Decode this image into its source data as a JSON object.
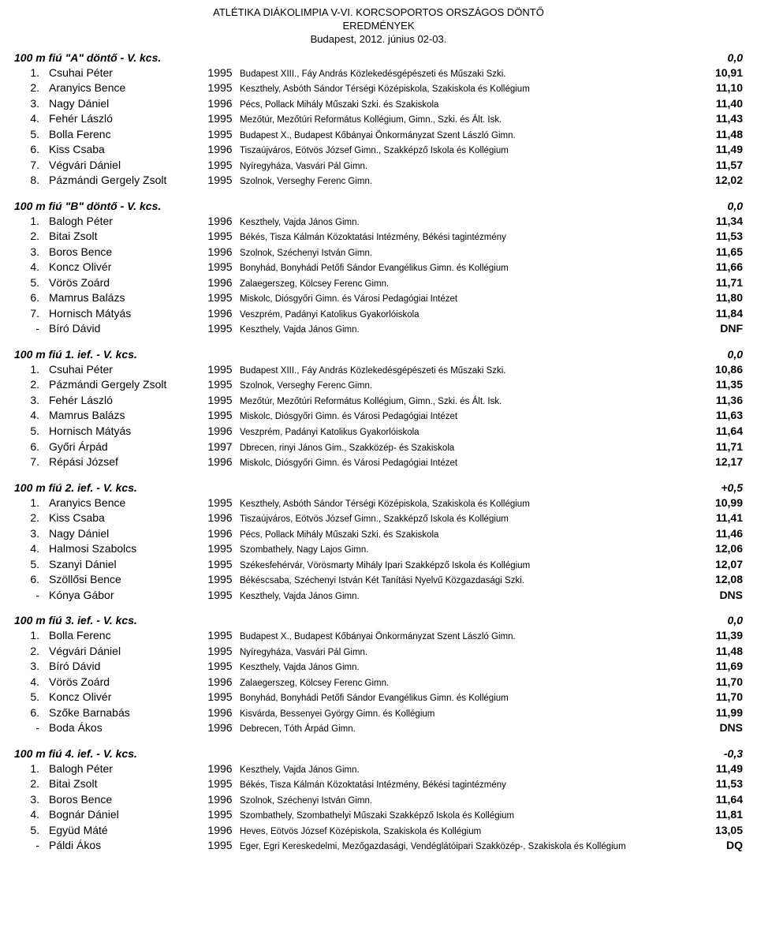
{
  "header": {
    "line1": "ATLÉTIKA DIÁKOLIMPIA V-VI. KORCSOPORTOS ORSZÁGOS DÖNTŐ",
    "line2": "EREDMÉNYEK",
    "line3": "Budapest, 2012. június 02-03."
  },
  "sections": [
    {
      "title": "100 m fiú \"A\" döntő  - V. kcs.",
      "wind": "0,0",
      "rows": [
        {
          "place": "1.",
          "name": "Csuhai Péter",
          "year": "1995",
          "school": "Budapest XIII., Fáy András Közlekedésgépészeti és Műszaki Szki.",
          "result": "10,91"
        },
        {
          "place": "2.",
          "name": "Aranyics Bence",
          "year": "1995",
          "school": "Keszthely, Asbóth Sándor Térségi Középiskola, Szakiskola és Kollégium",
          "result": "11,10"
        },
        {
          "place": "3.",
          "name": "Nagy Dániel",
          "year": "1996",
          "school": "Pécs, Pollack Mihály Műszaki Szki. és Szakiskola",
          "result": "11,40"
        },
        {
          "place": "4.",
          "name": "Fehér László",
          "year": "1995",
          "school": "Mezőtúr, Mezőtúri Református Kollégium, Gimn., Szki. és Ált. Isk.",
          "result": "11,43"
        },
        {
          "place": "5.",
          "name": "Bolla Ferenc",
          "year": "1995",
          "school": "Budapest X., Budapest Kőbányai Önkormányzat Szent László Gimn.",
          "result": "11,48"
        },
        {
          "place": "6.",
          "name": "Kiss Csaba",
          "year": "1996",
          "school": "Tiszaújváros, Eötvös József Gimn., Szakképző Iskola és Kollégium",
          "result": "11,49"
        },
        {
          "place": "7.",
          "name": "Végvári Dániel",
          "year": "1995",
          "school": "Nyíregyháza, Vasvári Pál Gimn.",
          "result": "11,57"
        },
        {
          "place": "8.",
          "name": "Pázmándi Gergely Zsolt",
          "year": "1995",
          "school": "Szolnok, Verseghy Ferenc Gimn.",
          "result": "12,02"
        }
      ]
    },
    {
      "title": "100 m fiú \"B\" döntő  - V. kcs.",
      "wind": "0,0",
      "rows": [
        {
          "place": "1.",
          "name": "Balogh Péter",
          "year": "1996",
          "school": "Keszthely, Vajda János Gimn.",
          "result": "11,34"
        },
        {
          "place": "2.",
          "name": "Bitai Zsolt",
          "year": "1995",
          "school": "Békés, Tisza Kálmán Közoktatási Intézmény, Békési tagintézmény",
          "result": "11,53"
        },
        {
          "place": "3.",
          "name": "Boros Bence",
          "year": "1996",
          "school": "Szolnok, Széchenyi István Gimn.",
          "result": "11,65"
        },
        {
          "place": "4.",
          "name": "Koncz Olivér",
          "year": "1995",
          "school": "Bonyhád, Bonyhádi Petőfi Sándor Evangélikus Gimn. és Kollégium",
          "result": "11,66"
        },
        {
          "place": "5.",
          "name": "Vörös Zoárd",
          "year": "1996",
          "school": "Zalaegerszeg, Kölcsey Ferenc Gimn.",
          "result": "11,71"
        },
        {
          "place": "6.",
          "name": "Mamrus Balázs",
          "year": "1995",
          "school": "Miskolc, Diósgyőri Gimn. és Városi Pedagógiai Intézet",
          "result": "11,80"
        },
        {
          "place": "7.",
          "name": "Hornisch Mátyás",
          "year": "1996",
          "school": "Veszprém, Padányi Katolikus Gyakorlóiskola",
          "result": "11,84"
        },
        {
          "place": "-",
          "name": "Bíró Dávid",
          "year": "1995",
          "school": "Keszthely, Vajda János Gimn.",
          "result": "DNF"
        }
      ]
    },
    {
      "title": "100 m fiú 1. ief.  - V. kcs.",
      "wind": "0,0",
      "rows": [
        {
          "place": "1.",
          "name": "Csuhai Péter",
          "year": "1995",
          "school": "Budapest XIII., Fáy András Közlekedésgépészeti és Műszaki Szki.",
          "result": "10,86"
        },
        {
          "place": "2.",
          "name": "Pázmándi Gergely Zsolt",
          "year": "1995",
          "school": "Szolnok, Verseghy Ferenc Gimn.",
          "result": "11,35"
        },
        {
          "place": "3.",
          "name": "Fehér László",
          "year": "1995",
          "school": "Mezőtúr, Mezőtúri Református Kollégium, Gimn., Szki. és Ált. Isk.",
          "result": "11,36"
        },
        {
          "place": "4.",
          "name": "Mamrus Balázs",
          "year": "1995",
          "school": "Miskolc, Diósgyőri Gimn. és Városi Pedagógiai Intézet",
          "result": "11,63"
        },
        {
          "place": "5.",
          "name": "Hornisch Mátyás",
          "year": "1996",
          "school": "Veszprém, Padányi Katolikus Gyakorlóiskola",
          "result": "11,64"
        },
        {
          "place": "6.",
          "name": "Győri Árpád",
          "year": "1997",
          "school": "Dbrecen, rinyi János Gim., Szakközép- és Szakiskola",
          "result": "11,71"
        },
        {
          "place": "7.",
          "name": "Répási József",
          "year": "1996",
          "school": "Miskolc, Diósgyőri Gimn. és Városi Pedagógiai Intézet",
          "result": "12,17"
        }
      ]
    },
    {
      "title": "100 m fiú 2. ief.  - V. kcs.",
      "wind": "+0,5",
      "rows": [
        {
          "place": "1.",
          "name": "Aranyics Bence",
          "year": "1995",
          "school": "Keszthely, Asbóth Sándor Térségi Középiskola, Szakiskola és Kollégium",
          "result": "10,99"
        },
        {
          "place": "2.",
          "name": "Kiss Csaba",
          "year": "1996",
          "school": "Tiszaújváros, Eötvös József Gimn., Szakképző Iskola és Kollégium",
          "result": "11,41"
        },
        {
          "place": "3.",
          "name": "Nagy Dániel",
          "year": "1996",
          "school": "Pécs, Pollack Mihály Műszaki Szki. és Szakiskola",
          "result": "11,46"
        },
        {
          "place": "4.",
          "name": "Halmosi Szabolcs",
          "year": "1995",
          "school": "Szombathely, Nagy Lajos Gimn.",
          "result": "12,06"
        },
        {
          "place": "5.",
          "name": "Szanyi Dániel",
          "year": "1995",
          "school": "Székesfehérvár, Vörösmarty Mihály Ipari Szakképző Iskola és Kollégium",
          "result": "12,07"
        },
        {
          "place": "6.",
          "name": "Szöllősi Bence",
          "year": "1995",
          "school": "Békéscsaba, Széchenyi István Két Tanítási Nyelvű Közgazdasági Szki.",
          "result": "12,08"
        },
        {
          "place": "-",
          "name": "Kónya Gábor",
          "year": "1995",
          "school": "Keszthely, Vajda János Gimn.",
          "result": "DNS"
        }
      ]
    },
    {
      "title": "100 m fiú 3. ief.  - V. kcs.",
      "wind": "0,0",
      "rows": [
        {
          "place": "1.",
          "name": "Bolla Ferenc",
          "year": "1995",
          "school": "Budapest X., Budapest Kőbányai Önkormányzat Szent László Gimn.",
          "result": "11,39"
        },
        {
          "place": "2.",
          "name": "Végvári Dániel",
          "year": "1995",
          "school": "Nyíregyháza, Vasvári Pál Gimn.",
          "result": "11,48"
        },
        {
          "place": "3.",
          "name": "Bíró Dávid",
          "year": "1995",
          "school": "Keszthely, Vajda János Gimn.",
          "result": "11,69"
        },
        {
          "place": "4.",
          "name": "Vörös Zoárd",
          "year": "1996",
          "school": "Zalaegerszeg, Kölcsey Ferenc Gimn.",
          "result": "11,70"
        },
        {
          "place": "5.",
          "name": "Koncz Olivér",
          "year": "1995",
          "school": "Bonyhád, Bonyhádi Petőfi Sándor Evangélikus Gimn. és Kollégium",
          "result": "11,70"
        },
        {
          "place": "6.",
          "name": "Szőke Barnabás",
          "year": "1996",
          "school": "Kisvárda, Bessenyei György Gimn. és Kollégium",
          "result": "11,99"
        },
        {
          "place": "-",
          "name": "Boda Ákos",
          "year": "1996",
          "school": "Debrecen, Tóth Árpád Gimn.",
          "result": "DNS"
        }
      ]
    },
    {
      "title": "100 m fiú 4. ief.  - V. kcs.",
      "wind": "-0,3",
      "rows": [
        {
          "place": "1.",
          "name": "Balogh Péter",
          "year": "1996",
          "school": "Keszthely, Vajda János Gimn.",
          "result": "11,49"
        },
        {
          "place": "2.",
          "name": "Bitai Zsolt",
          "year": "1995",
          "school": "Békés, Tisza Kálmán Közoktatási Intézmény, Békési tagintézmény",
          "result": "11,53"
        },
        {
          "place": "3.",
          "name": "Boros Bence",
          "year": "1996",
          "school": "Szolnok, Széchenyi István Gimn.",
          "result": "11,64"
        },
        {
          "place": "4.",
          "name": "Bognár Dániel",
          "year": "1995",
          "school": "Szombathely, Szombathelyi Műszaki Szakképző Iskola és Kollégium",
          "result": "11,81"
        },
        {
          "place": "5.",
          "name": "Együd Máté",
          "year": "1996",
          "school": "Heves, Eötvös József Középiskola, Szakiskola és Kollégium",
          "result": "13,05"
        },
        {
          "place": "-",
          "name": "Páldi Ákos",
          "year": "1995",
          "school": "Eger, Egri Kereskedelmi, Mezőgazdasági, Vendéglátóipari Szakközép-, Szakiskola és Kollégium",
          "result": "DQ"
        }
      ]
    }
  ]
}
